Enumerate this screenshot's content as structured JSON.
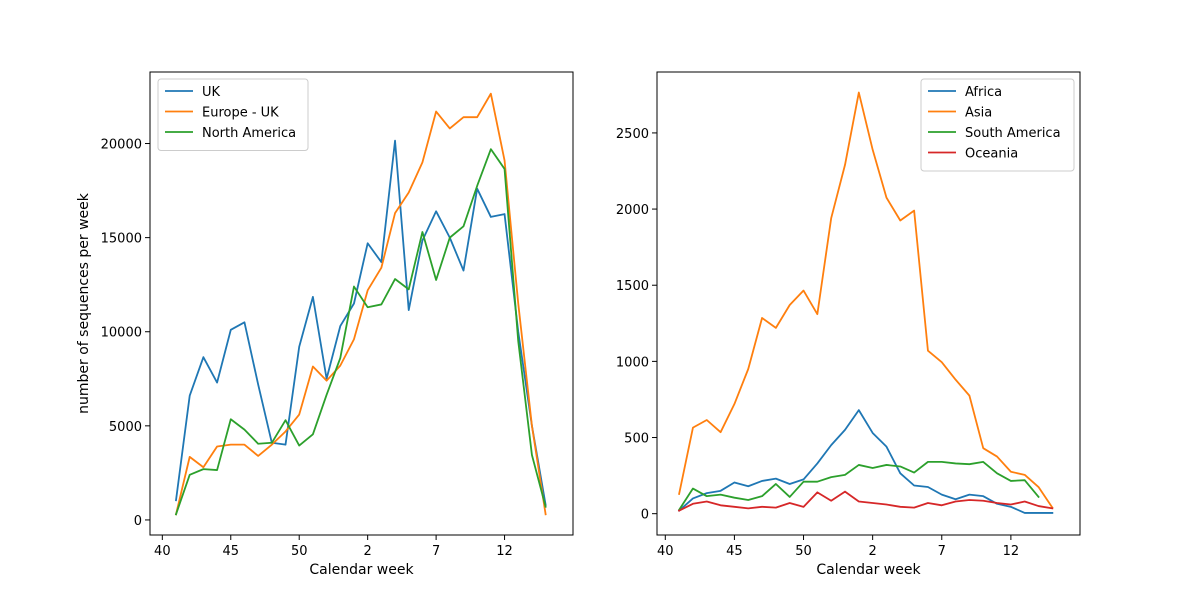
{
  "chart_data": [
    {
      "type": "line",
      "xlabel": "Calendar week",
      "ylabel": "number of sequences per week",
      "xticks": [
        {
          "label": "40",
          "pos": 0
        },
        {
          "label": "45",
          "pos": 5
        },
        {
          "label": "50",
          "pos": 10
        },
        {
          "label": "2",
          "pos": 15
        },
        {
          "label": "7",
          "pos": 20
        },
        {
          "label": "12",
          "pos": 25
        }
      ],
      "yticks": [
        0,
        5000,
        10000,
        15000,
        20000
      ],
      "xlim": [
        -0.9,
        30.0
      ],
      "ylim": [
        -800,
        23800
      ],
      "legend_position": "top-left",
      "series": [
        {
          "name": "UK",
          "color": "#1f77b4",
          "x": [
            1,
            2,
            3,
            4,
            5,
            6,
            7,
            8,
            9,
            10,
            11,
            12,
            13,
            14,
            15,
            16,
            17,
            18,
            19,
            20,
            21,
            22,
            23,
            24,
            25,
            26,
            27,
            28
          ],
          "y": [
            1050,
            6600,
            8650,
            7300,
            10100,
            10500,
            7200,
            4100,
            4000,
            9200,
            11850,
            7500,
            10300,
            11500,
            14700,
            13700,
            20150,
            11150,
            14850,
            16400,
            15000,
            13250,
            17600,
            16100,
            16250,
            10000,
            5000,
            800
          ]
        },
        {
          "name": "Europe - UK",
          "color": "#ff7f0e",
          "x": [
            1,
            2,
            3,
            4,
            5,
            6,
            7,
            8,
            9,
            10,
            11,
            12,
            13,
            14,
            15,
            16,
            17,
            18,
            19,
            20,
            21,
            22,
            23,
            24,
            25,
            26,
            27,
            28
          ],
          "y": [
            300,
            3350,
            2800,
            3900,
            4000,
            4000,
            3400,
            4000,
            4700,
            5600,
            8150,
            7400,
            8200,
            9600,
            12200,
            13400,
            16300,
            17400,
            19000,
            21700,
            20800,
            21400,
            21400,
            22650,
            19100,
            11500,
            5000,
            300
          ]
        },
        {
          "name": "North America",
          "color": "#2ca02c",
          "x": [
            1,
            2,
            3,
            4,
            5,
            6,
            7,
            8,
            9,
            10,
            11,
            12,
            13,
            14,
            15,
            16,
            17,
            18,
            19,
            20,
            21,
            22,
            23,
            24,
            25,
            26,
            27,
            28
          ],
          "y": [
            300,
            2400,
            2700,
            2650,
            5350,
            4800,
            4050,
            4100,
            5300,
            3950,
            4550,
            6650,
            8600,
            12400,
            11300,
            11450,
            12800,
            12250,
            15300,
            12750,
            15000,
            15600,
            17750,
            19700,
            18650,
            9500,
            3450,
            700
          ]
        }
      ]
    },
    {
      "type": "line",
      "xlabel": "Calendar week",
      "ylabel": "",
      "xticks": [
        {
          "label": "40",
          "pos": 0
        },
        {
          "label": "45",
          "pos": 5
        },
        {
          "label": "50",
          "pos": 10
        },
        {
          "label": "2",
          "pos": 15
        },
        {
          "label": "7",
          "pos": 20
        },
        {
          "label": "12",
          "pos": 25
        }
      ],
      "yticks": [
        0,
        500,
        1000,
        1500,
        2000,
        2500
      ],
      "xlim": [
        -0.6,
        30.0
      ],
      "ylim": [
        -140,
        2900
      ],
      "legend_position": "top-right",
      "series": [
        {
          "name": "Africa",
          "color": "#1f77b4",
          "x": [
            1,
            2,
            3,
            4,
            5,
            6,
            7,
            8,
            9,
            10,
            11,
            12,
            13,
            14,
            15,
            16,
            17,
            18,
            19,
            20,
            21,
            22,
            23,
            24,
            25,
            26,
            27,
            28
          ],
          "y": [
            20,
            100,
            135,
            150,
            205,
            180,
            215,
            230,
            195,
            225,
            330,
            450,
            550,
            680,
            530,
            440,
            265,
            185,
            175,
            125,
            95,
            125,
            115,
            65,
            45,
            5,
            5,
            5
          ]
        },
        {
          "name": "Asia",
          "color": "#ff7f0e",
          "x": [
            1,
            2,
            3,
            4,
            5,
            6,
            7,
            8,
            9,
            10,
            11,
            12,
            13,
            14,
            15,
            16,
            17,
            18,
            19,
            20,
            21,
            22,
            23,
            24,
            25,
            26,
            27,
            28
          ],
          "y": [
            130,
            565,
            615,
            535,
            720,
            950,
            1285,
            1220,
            1370,
            1465,
            1310,
            1940,
            2290,
            2765,
            2390,
            2075,
            1925,
            1990,
            1070,
            995,
            880,
            775,
            430,
            375,
            275,
            255,
            175,
            40
          ]
        },
        {
          "name": "South America",
          "color": "#2ca02c",
          "x": [
            1,
            2,
            3,
            4,
            5,
            6,
            7,
            8,
            9,
            10,
            11,
            12,
            13,
            14,
            15,
            16,
            17,
            18,
            19,
            20,
            21,
            22,
            23,
            24,
            25,
            26,
            27
          ],
          "y": [
            25,
            165,
            115,
            125,
            105,
            90,
            115,
            195,
            110,
            210,
            210,
            240,
            255,
            320,
            300,
            320,
            310,
            270,
            340,
            340,
            330,
            325,
            340,
            265,
            215,
            220,
            110
          ]
        },
        {
          "name": "Oceania",
          "color": "#d62728",
          "x": [
            1,
            2,
            3,
            4,
            5,
            6,
            7,
            8,
            9,
            10,
            11,
            12,
            13,
            14,
            15,
            16,
            17,
            18,
            19,
            20,
            21,
            22,
            23,
            24,
            25,
            26,
            27,
            28
          ],
          "y": [
            20,
            65,
            80,
            55,
            45,
            35,
            45,
            40,
            70,
            45,
            140,
            85,
            145,
            80,
            70,
            60,
            45,
            40,
            70,
            55,
            80,
            90,
            85,
            70,
            60,
            80,
            50,
            35
          ]
        }
      ]
    }
  ]
}
